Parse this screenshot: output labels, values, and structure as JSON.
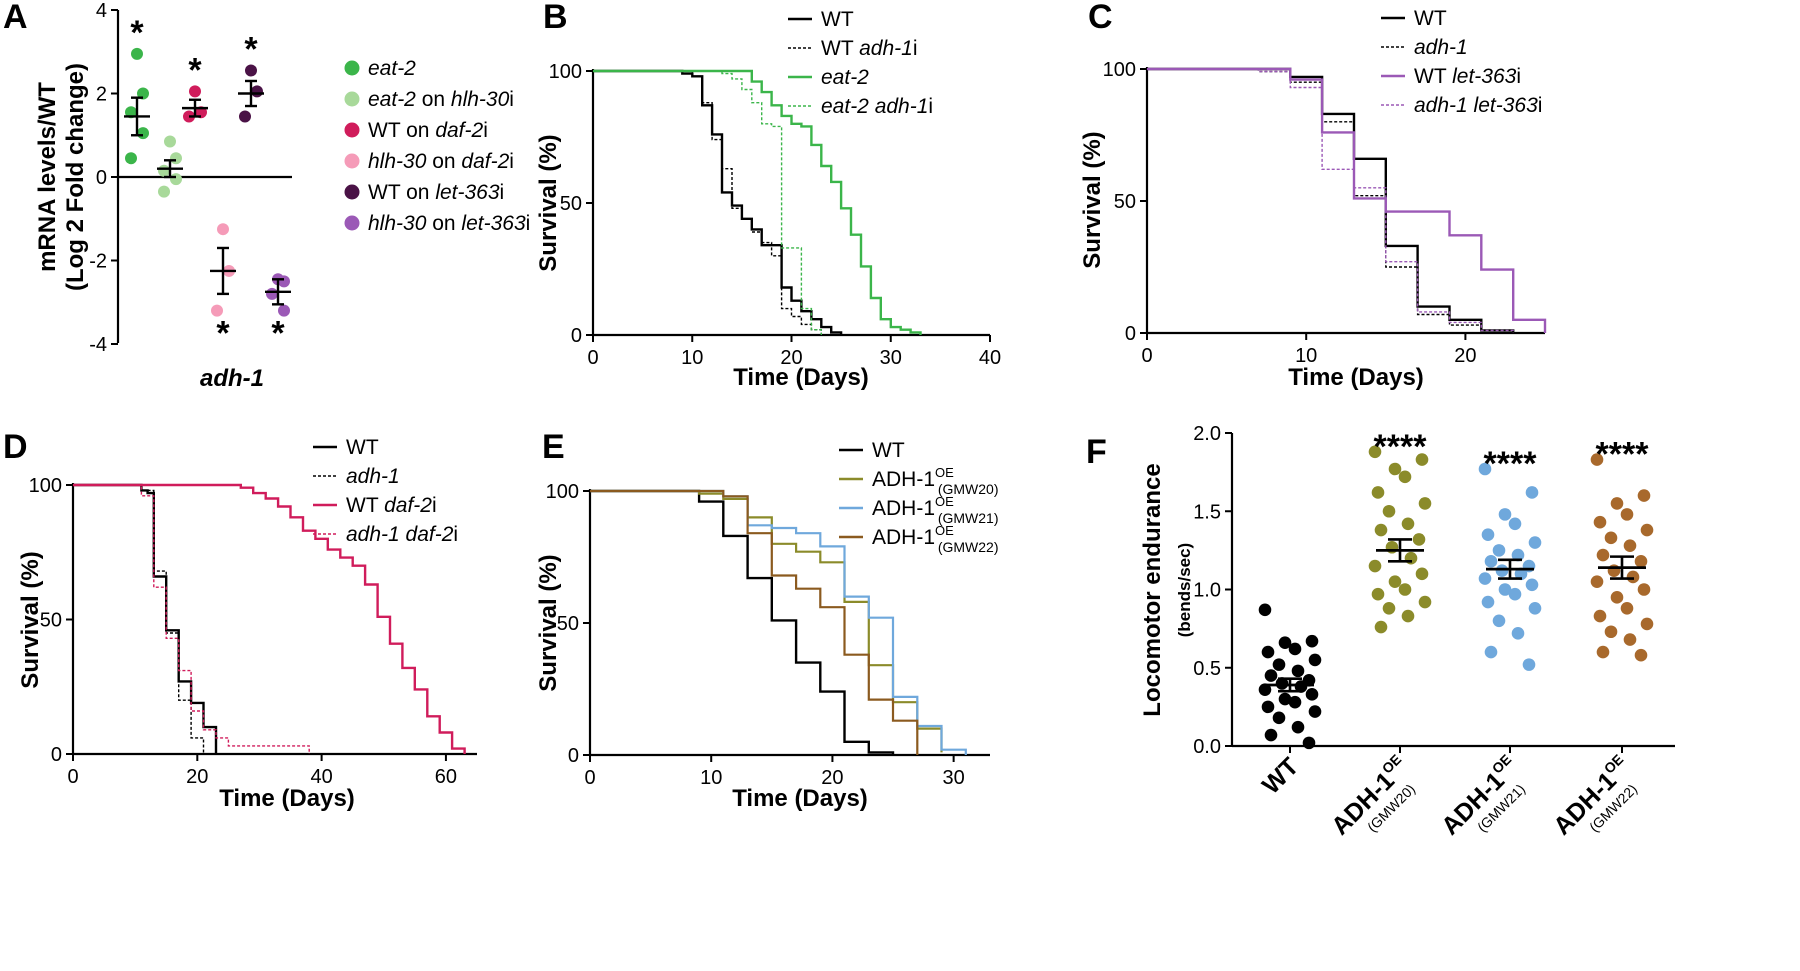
{
  "panels": {
    "A": {
      "letter": "A",
      "ylabel1": "mRNA levels/WT",
      "ylabel2": "(Log 2 Fold change)",
      "xlabel": "adh-1"
    },
    "B": {
      "letter": "B"
    },
    "C": {
      "letter": "C"
    },
    "D": {
      "letter": "D"
    },
    "E": {
      "letter": "E"
    },
    "F": {
      "letter": "F"
    }
  },
  "chart_data": [
    {
      "id": "A",
      "type": "scatter",
      "title": "",
      "xlabel": "adh-1",
      "ylabel": "mRNA levels/WT (Log 2 Fold change)",
      "ylim": [
        -4,
        4
      ],
      "yticks": [
        -4,
        -2,
        0,
        2,
        4
      ],
      "star": "*",
      "groups": [
        {
          "name": "eat-2",
          "color": "#3bb54a",
          "points": [
            2.95,
            2.0,
            1.55,
            1.05,
            0.45
          ],
          "mean": 1.45,
          "sem": 0.45,
          "sig": true
        },
        {
          "name": "eat-2 on hlh-30i",
          "color": "#a8d99a",
          "points": [
            0.85,
            0.45,
            0.15,
            -0.05,
            -0.35
          ],
          "mean": 0.2,
          "sem": 0.2,
          "sig": false
        },
        {
          "name": "WT on daf-2i",
          "color": "#d01c5b",
          "points": [
            2.05,
            1.55,
            1.45
          ],
          "mean": 1.65,
          "sem": 0.2,
          "sig": true
        },
        {
          "name": "hlh-30 on daf-2i",
          "color": "#f59bb8",
          "points": [
            -1.25,
            -2.25,
            -3.2
          ],
          "mean": -2.25,
          "sem": 0.55,
          "sig": true
        },
        {
          "name": "WT on let-363i",
          "color": "#4a1246",
          "points": [
            2.55,
            2.05,
            1.45
          ],
          "mean": 2.0,
          "sem": 0.3,
          "sig": true
        },
        {
          "name": "hlh-30 on let-363i",
          "color": "#9b59b6",
          "points": [
            -2.45,
            -2.5,
            -2.8,
            -3.2
          ],
          "mean": -2.75,
          "sem": 0.3,
          "sig": true
        }
      ]
    },
    {
      "id": "B",
      "type": "line",
      "xlabel": "Time (Days)",
      "ylabel": "Survival  (%)",
      "xlim": [
        0,
        40
      ],
      "ylim": [
        0,
        100
      ],
      "xticks": [
        0,
        10,
        20,
        30,
        40
      ],
      "yticks": [
        0,
        50,
        100
      ],
      "series": [
        {
          "name": "WT",
          "italic": "",
          "suffix": "",
          "color": "#000000",
          "dashed": false,
          "width": 2.4,
          "x": [
            0,
            9,
            10,
            11,
            12,
            13,
            14,
            15,
            16,
            17,
            18,
            19,
            20,
            21,
            22,
            23,
            24,
            25
          ],
          "y": [
            100,
            99,
            98,
            87,
            76,
            54,
            49,
            44,
            40,
            34,
            34,
            18,
            13,
            9,
            6,
            3,
            1,
            0
          ]
        },
        {
          "name": "WT ",
          "italic": "adh-1",
          "suffix": "i",
          "color": "#000000",
          "dashed": true,
          "width": 1.4,
          "x": [
            0,
            10,
            11,
            12,
            13,
            14,
            15,
            16,
            17,
            18,
            19,
            20,
            21,
            22,
            23
          ],
          "y": [
            100,
            98,
            88,
            74,
            63,
            48,
            44,
            39,
            35,
            30,
            10,
            7,
            4,
            2,
            0
          ]
        },
        {
          "name": "",
          "italic": "eat-2",
          "suffix": "",
          "color": "#3bb54a",
          "dashed": false,
          "width": 2.4,
          "x": [
            0,
            15,
            16,
            17,
            18,
            19,
            20,
            21,
            22,
            23,
            24,
            25,
            26,
            27,
            28,
            29,
            30,
            31,
            32,
            33
          ],
          "y": [
            100,
            100,
            96,
            92,
            87,
            83,
            80,
            79,
            72,
            64,
            58,
            48,
            38,
            26,
            14,
            6,
            3,
            2,
            1,
            0
          ]
        },
        {
          "name": "",
          "italic": "eat-2 adh-1",
          "suffix": "i",
          "color": "#3bb54a",
          "dashed": true,
          "width": 1.4,
          "x": [
            0,
            12,
            13,
            14,
            15,
            16,
            17,
            18,
            19,
            20,
            21,
            22,
            23
          ],
          "y": [
            100,
            100,
            99,
            97,
            93,
            88,
            80,
            79,
            33,
            33,
            10,
            2,
            0
          ]
        }
      ]
    },
    {
      "id": "C",
      "type": "line",
      "xlabel": "Time (Days)",
      "ylabel": "Survival  (%)",
      "xlim": [
        0,
        25
      ],
      "ylim": [
        0,
        100
      ],
      "xticks": [
        0,
        10,
        20
      ],
      "yticks": [
        0,
        50,
        100
      ],
      "series": [
        {
          "name": "WT",
          "italic": "",
          "suffix": "",
          "color": "#000000",
          "dashed": false,
          "width": 2.4,
          "x": [
            0,
            9,
            11,
            13,
            15,
            17,
            19,
            21,
            23
          ],
          "y": [
            100,
            97,
            83,
            66,
            33,
            10,
            5,
            1,
            0
          ]
        },
        {
          "name": "",
          "italic": "adh-1",
          "suffix": "",
          "color": "#000000",
          "dashed": true,
          "width": 1.4,
          "x": [
            0,
            7,
            9,
            11,
            13,
            15,
            17,
            19,
            21,
            23
          ],
          "y": [
            100,
            99,
            95,
            80,
            52,
            25,
            7,
            3,
            1,
            0
          ]
        },
        {
          "name": "WT ",
          "italic": "let-363",
          "suffix": "i",
          "color": "#9b59b6",
          "dashed": false,
          "width": 2.4,
          "x": [
            0,
            9,
            11,
            13,
            15,
            19,
            21,
            23,
            25
          ],
          "y": [
            100,
            96,
            76,
            51,
            46,
            37,
            24,
            5,
            0
          ]
        },
        {
          "name": "",
          "italic": "adh-1 let-363",
          "suffix": "i",
          "color": "#9b59b6",
          "dashed": true,
          "width": 1.4,
          "x": [
            0,
            7,
            9,
            11,
            13,
            15,
            17,
            19,
            21,
            23
          ],
          "y": [
            100,
            99,
            93,
            62,
            55,
            27,
            8,
            4,
            1,
            0
          ]
        }
      ]
    },
    {
      "id": "D",
      "type": "line",
      "xlabel": "Time (Days)",
      "ylabel": "Survival  (%)",
      "xlim": [
        0,
        65
      ],
      "ylim": [
        0,
        100
      ],
      "xticks": [
        0,
        20,
        40,
        60
      ],
      "yticks": [
        0,
        50,
        100
      ],
      "series": [
        {
          "name": "WT",
          "italic": "",
          "suffix": "",
          "color": "#000000",
          "dashed": false,
          "width": 2.4,
          "x": [
            0,
            11,
            12,
            13,
            14,
            15,
            16,
            17,
            18,
            19,
            20,
            21,
            22,
            23
          ],
          "y": [
            100,
            98,
            97,
            66,
            66,
            46,
            46,
            27,
            27,
            19,
            19,
            10,
            10,
            0
          ]
        },
        {
          "name": "",
          "italic": "adh-1",
          "suffix": "",
          "color": "#000000",
          "dashed": true,
          "width": 1.4,
          "x": [
            0,
            11,
            13,
            15,
            17,
            19,
            21
          ],
          "y": [
            100,
            98,
            68,
            45,
            20,
            6,
            0
          ]
        },
        {
          "name": "WT ",
          "italic": "daf-2",
          "suffix": "i",
          "color": "#d01c5b",
          "dashed": false,
          "width": 2.4,
          "x": [
            0,
            27,
            29,
            31,
            33,
            35,
            37,
            39,
            41,
            43,
            45,
            47,
            49,
            51,
            53,
            55,
            57,
            59,
            61,
            63
          ],
          "y": [
            100,
            99,
            97,
            95,
            92,
            88,
            83,
            80,
            76,
            73,
            70,
            63,
            51,
            41,
            32,
            24,
            14,
            8,
            2,
            0
          ]
        },
        {
          "name": "",
          "italic": "adh-1 daf-2",
          "suffix": "i",
          "color": "#d01c5b",
          "dashed": true,
          "width": 1.4,
          "x": [
            0,
            11,
            13,
            15,
            17,
            19,
            21,
            23,
            25,
            38
          ],
          "y": [
            100,
            96,
            62,
            43,
            31,
            16,
            9,
            6,
            3,
            0
          ]
        }
      ]
    },
    {
      "id": "E",
      "type": "line",
      "xlabel": "Time (Days)",
      "ylabel": "Survival  (%)",
      "xlim": [
        0,
        33
      ],
      "ylim": [
        0,
        100
      ],
      "xticks": [
        0,
        10,
        20,
        30
      ],
      "yticks": [
        0,
        50,
        100
      ],
      "series": [
        {
          "name": "WT",
          "sup": "",
          "sub": "",
          "color": "#000000",
          "dashed": false,
          "width": 2.4,
          "x": [
            0,
            9,
            11,
            13,
            15,
            17,
            19,
            21,
            23,
            25
          ],
          "y": [
            100,
            96,
            83,
            67,
            51,
            35,
            24,
            5,
            1,
            0
          ]
        },
        {
          "name": "ADH-1",
          "sup": "OE",
          "sub": "(GMW20)",
          "color": "#8b8b2a",
          "dashed": false,
          "width": 2.2,
          "x": [
            0,
            9,
            11,
            13,
            15,
            17,
            19,
            21,
            23,
            25,
            27,
            29
          ],
          "y": [
            100,
            99,
            97,
            90,
            80,
            77,
            73,
            58,
            34,
            20,
            10,
            1
          ]
        },
        {
          "name": "ADH-1",
          "sup": "OE",
          "sub": "(GMW21)",
          "color": "#6fa8dc",
          "dashed": false,
          "width": 2.2,
          "x": [
            0,
            11,
            13,
            15,
            17,
            19,
            21,
            23,
            25,
            27,
            29,
            31
          ],
          "y": [
            100,
            98,
            87,
            86,
            84,
            79,
            60,
            52,
            22,
            11,
            2,
            0
          ]
        },
        {
          "name": "ADH-1",
          "sup": "OE",
          "sub": "(GMW22)",
          "color": "#8b5a1f",
          "dashed": false,
          "width": 2.2,
          "x": [
            0,
            11,
            13,
            15,
            17,
            19,
            21,
            23,
            25,
            27
          ],
          "y": [
            100,
            98,
            84,
            68,
            63,
            56,
            38,
            21,
            13,
            0
          ]
        }
      ]
    },
    {
      "id": "F",
      "type": "scatter",
      "xlabel": "",
      "ylabel": "Locomotor endurance",
      "ylabel_unit": "(bends/sec)",
      "ylim": [
        0,
        2
      ],
      "yticks": [
        0.0,
        0.5,
        1.0,
        1.5,
        2.0
      ],
      "ytick_labels": [
        "0.0",
        "0.5",
        "1.0",
        "1.5",
        "2.0"
      ],
      "stars": "****",
      "groups": [
        {
          "name": "WT",
          "sup": "",
          "sub": "",
          "color": "#000000",
          "mean": 0.39,
          "sem": 0.04,
          "sig": false,
          "points": [
            0.87,
            0.67,
            0.66,
            0.62,
            0.6,
            0.55,
            0.52,
            0.48,
            0.45,
            0.42,
            0.4,
            0.38,
            0.36,
            0.33,
            0.3,
            0.28,
            0.25,
            0.22,
            0.18,
            0.12,
            0.07,
            0.02
          ]
        },
        {
          "name": "ADH-1",
          "sup": "OE",
          "sub": "(GMW20)",
          "color": "#8b8b2a",
          "mean": 1.25,
          "sem": 0.07,
          "sig": true,
          "points": [
            1.88,
            1.83,
            1.77,
            1.72,
            1.62,
            1.55,
            1.5,
            1.42,
            1.38,
            1.32,
            1.27,
            1.2,
            1.15,
            1.1,
            1.05,
            1.0,
            0.97,
            0.92,
            0.88,
            0.83,
            0.76
          ]
        },
        {
          "name": "ADH-1",
          "sup": "OE",
          "sub": "(GMW21)",
          "color": "#6fa8dc",
          "mean": 1.13,
          "sem": 0.06,
          "sig": true,
          "points": [
            1.77,
            1.62,
            1.48,
            1.42,
            1.35,
            1.3,
            1.25,
            1.22,
            1.18,
            1.15,
            1.12,
            1.1,
            1.07,
            1.03,
            1.0,
            0.97,
            0.92,
            0.88,
            0.8,
            0.72,
            0.6,
            0.52
          ]
        },
        {
          "name": "ADH-1",
          "sup": "OE",
          "sub": "(GMW22)",
          "color": "#a8692c",
          "mean": 1.14,
          "sem": 0.07,
          "sig": true,
          "points": [
            1.83,
            1.6,
            1.55,
            1.48,
            1.43,
            1.38,
            1.33,
            1.28,
            1.22,
            1.18,
            1.12,
            1.08,
            1.05,
            1.0,
            0.95,
            0.88,
            0.83,
            0.78,
            0.73,
            0.68,
            0.6,
            0.58
          ]
        }
      ]
    }
  ]
}
